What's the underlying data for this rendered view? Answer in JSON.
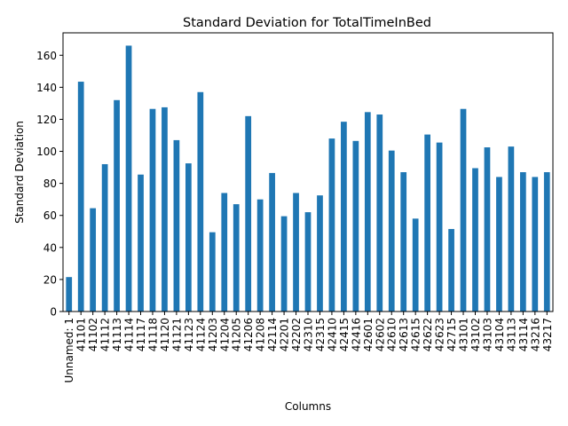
{
  "chart_data": {
    "type": "bar",
    "title": "Standard Deviation for TotalTimeInBed",
    "xlabel": "Columns",
    "ylabel": "Standard Deviation",
    "ylim": [
      0,
      174
    ],
    "yticks": [
      0,
      20,
      40,
      60,
      80,
      100,
      120,
      140,
      160
    ],
    "grid": false,
    "bar_color": "#1f77b4",
    "categories": [
      "Unnamed: 1",
      "41101",
      "41102",
      "41112",
      "41113",
      "41114",
      "41117",
      "41118",
      "41120",
      "41121",
      "41123",
      "41124",
      "41203",
      "41204",
      "41205",
      "41206",
      "41208",
      "42114",
      "42201",
      "42202",
      "42310",
      "42315",
      "42410",
      "42415",
      "42416",
      "42601",
      "42602",
      "42610",
      "42613",
      "42615",
      "42622",
      "42623",
      "42715",
      "43101",
      "43102",
      "43103",
      "43104",
      "43113",
      "43114",
      "43216",
      "43217"
    ],
    "values": [
      21.5,
      143.5,
      64.5,
      92,
      132,
      166,
      85.5,
      126.5,
      127.5,
      107,
      92.5,
      137,
      49.5,
      74,
      67,
      122,
      70,
      86.5,
      59.5,
      74,
      62,
      72.5,
      108,
      118.5,
      106.5,
      124.5,
      123,
      100.5,
      87,
      58,
      110.5,
      105.5,
      51.5,
      126.5,
      89.5,
      102.5,
      84,
      103,
      87,
      84,
      87
    ]
  }
}
